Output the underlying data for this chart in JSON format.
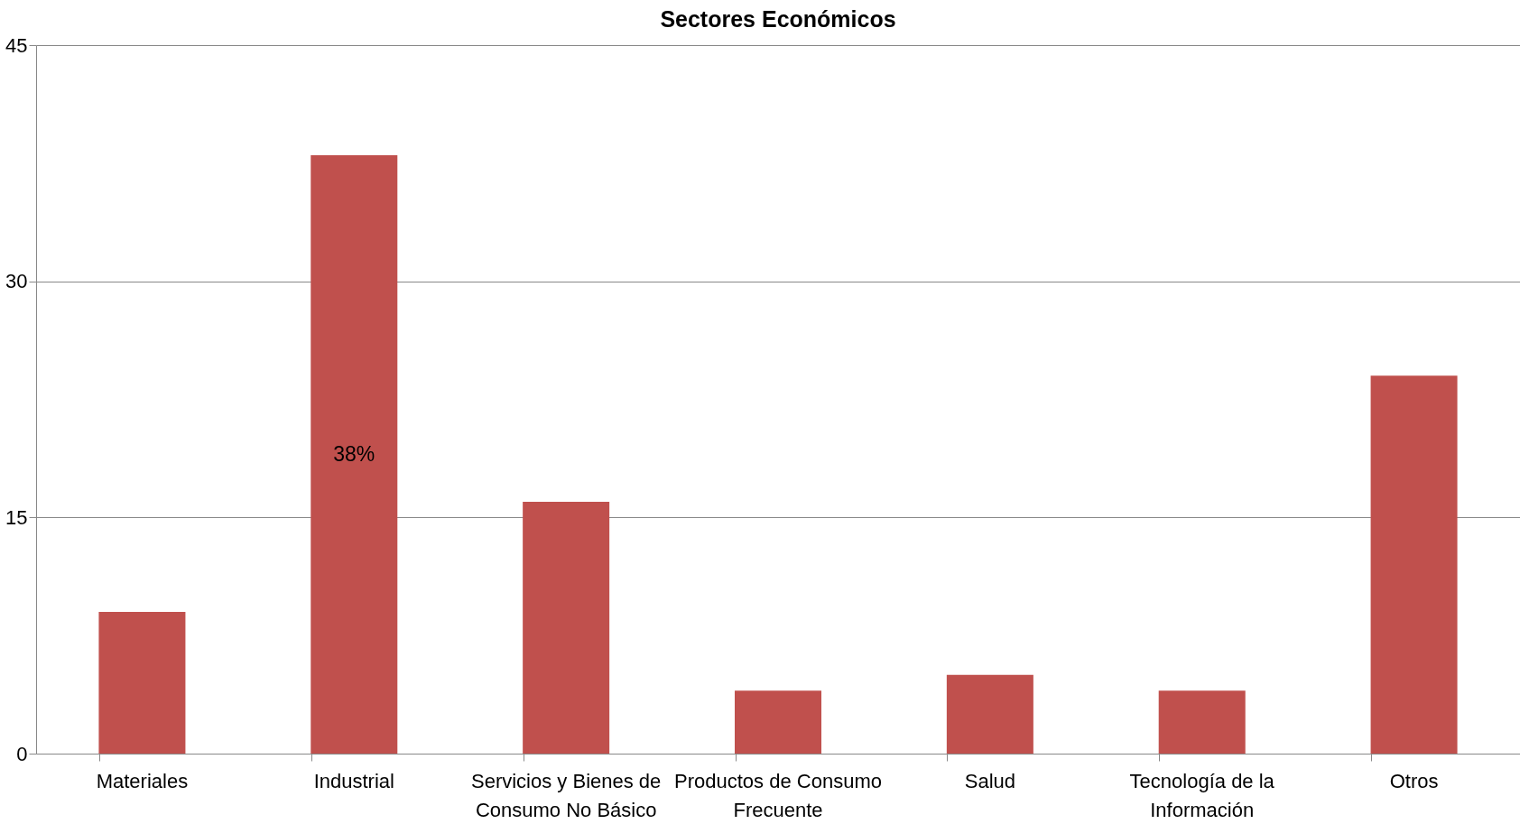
{
  "chart_data": {
    "type": "bar",
    "title": "Sectores Económicos",
    "categories": [
      "Materiales",
      "Industrial",
      "Servicios y Bienes de Consumo No Básico",
      "Productos de Consumo Frecuente",
      "Salud",
      "Tecnología de la Información",
      "Otros"
    ],
    "values": [
      9,
      38,
      16,
      4,
      5,
      4,
      24
    ],
    "value_labels": [
      null,
      "38%",
      null,
      null,
      null,
      null,
      null
    ],
    "color": "#c0504d",
    "ylim": [
      0,
      45
    ],
    "yticks": [
      0,
      15,
      30,
      45
    ],
    "grid": "y"
  }
}
